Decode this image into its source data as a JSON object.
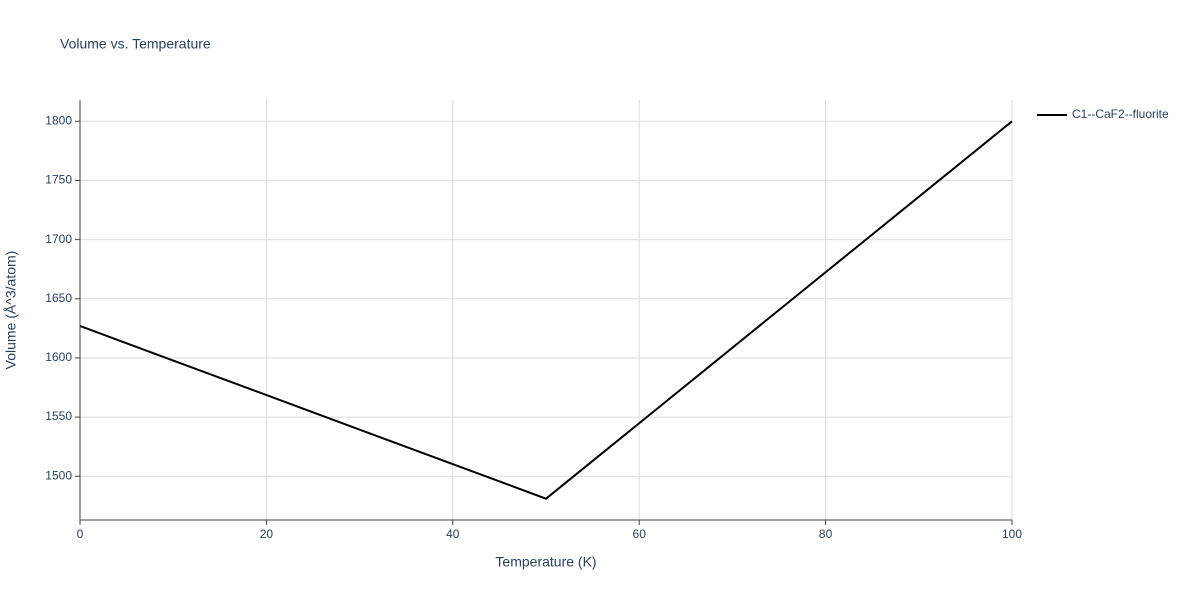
{
  "chart_data": {
    "type": "line",
    "title": "Volume vs. Temperature",
    "x_label": "Temperature (K)",
    "y_label": "Volume (Å^3/atom)",
    "x": [
      0,
      50,
      100
    ],
    "series": [
      {
        "name": "C1--CaF2--fluorite",
        "color": "#000000",
        "values": [
          1627,
          1481,
          1800
        ]
      }
    ],
    "xlim": [
      0,
      100
    ],
    "xticks": [
      0,
      20,
      40,
      60,
      80,
      100
    ],
    "ylim": [
      1463,
      1818
    ],
    "yticks": [
      1500,
      1550,
      1600,
      1650,
      1700,
      1750,
      1800
    ],
    "grid": true,
    "legend": "top-right"
  }
}
